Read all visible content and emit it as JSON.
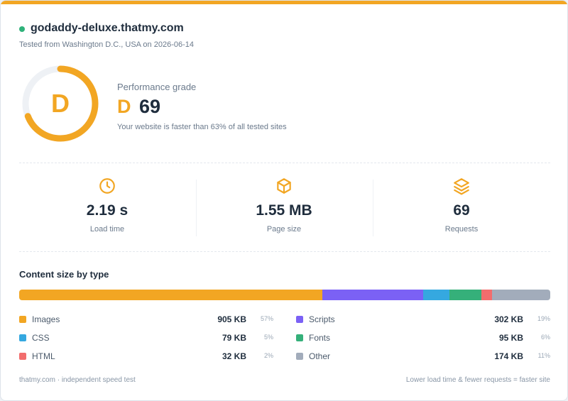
{
  "colors": {
    "accent": "#f2a623",
    "status": "#2fb27a",
    "images": "#f2a623",
    "scripts": "#7b61f5",
    "css": "#35a8e0",
    "fonts": "#35b07a",
    "html": "#f26d6d",
    "other": "#a2acbb"
  },
  "header": {
    "site": "godaddy-deluxe.thatmy.com",
    "tested": "Tested from Washington D.C., USA on 2026-06-14"
  },
  "performance": {
    "label": "Performance grade",
    "grade": "D",
    "score": "69",
    "score_value": 69,
    "description": "Your website is faster than 63% of all tested sites"
  },
  "metrics": [
    {
      "icon": "clock-icon",
      "value": "2.19 s",
      "label": "Load time"
    },
    {
      "icon": "cube-icon",
      "value": "1.55 MB",
      "label": "Page size"
    },
    {
      "icon": "layers-icon",
      "value": "69",
      "label": "Requests"
    }
  ],
  "content": {
    "title": "Content size by type",
    "items": [
      {
        "name": "Images",
        "size": "905 KB",
        "pct": "57%",
        "value": 905,
        "color": "#f2a623"
      },
      {
        "name": "Scripts",
        "size": "302 KB",
        "pct": "19%",
        "value": 302,
        "color": "#7b61f5"
      },
      {
        "name": "CSS",
        "size": "79 KB",
        "pct": "5%",
        "value": 79,
        "color": "#35a8e0"
      },
      {
        "name": "Fonts",
        "size": "95 KB",
        "pct": "6%",
        "value": 95,
        "color": "#35b07a"
      },
      {
        "name": "HTML",
        "size": "32 KB",
        "pct": "2%",
        "value": 32,
        "color": "#f26d6d"
      },
      {
        "name": "Other",
        "size": "174 KB",
        "pct": "11%",
        "value": 174,
        "color": "#a2acbb"
      }
    ]
  },
  "footer": {
    "left": "thatmy.com · independent speed test",
    "right": "Lower load time & fewer requests = faster site"
  }
}
